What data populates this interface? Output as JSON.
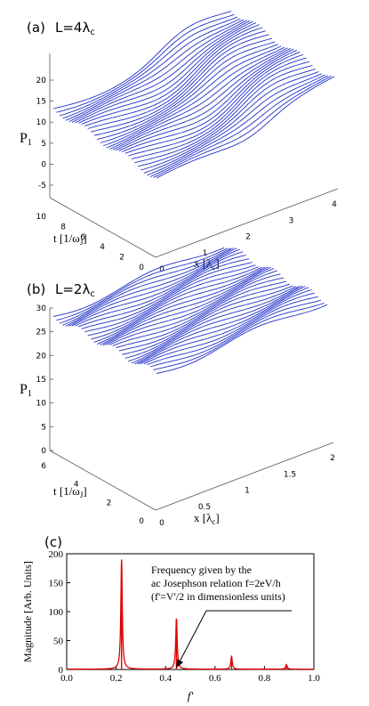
{
  "panels": [
    {
      "label": "(a)",
      "title_main": "L=4λ",
      "title_sub": "c",
      "type": "surface3d",
      "zlabel_main": "P",
      "zlabel_sub": "1",
      "tlabel_main": "t [1/ω",
      "tlabel_sub": "J",
      "tlabel_end": "]",
      "xlabel_main": "x [λ",
      "xlabel_sub": "c",
      "xlabel_end": "]",
      "z_ticks": [
        "20",
        "15",
        "10",
        "5",
        "0",
        "-5"
      ],
      "t_ticks": [
        "10",
        "8",
        "6",
        "4",
        "2",
        "0"
      ],
      "x_ticks": [
        "0",
        "1",
        "2",
        "3",
        "4"
      ],
      "line_color": "#1f2fc8"
    },
    {
      "label": "(b)",
      "title_main": "L=2λ",
      "title_sub": "c",
      "type": "surface3d",
      "zlabel_main": "P",
      "zlabel_sub": "1",
      "tlabel_main": "t [1/ω",
      "tlabel_sub": "J",
      "tlabel_end": "]",
      "xlabel_main": "x [λ",
      "xlabel_sub": "c",
      "xlabel_end": "]",
      "z_ticks": [
        "30",
        "25",
        "20",
        "15",
        "10",
        "5",
        "0"
      ],
      "t_ticks": [
        "6",
        "4",
        "2",
        "0"
      ],
      "x_ticks": [
        "0",
        "0.5",
        "1",
        "1.5",
        "2"
      ],
      "line_color": "#1f2fc8"
    }
  ],
  "panel_c_label": "(c)",
  "annotation": {
    "line1": "Frequency given by the",
    "line2": "ac Josephson relation f=2eV/h",
    "line3": "(f'=V'/2  in dimensionless units)"
  },
  "chart_data": {
    "type": "line",
    "xlabel": "f'",
    "ylabel": "Magnitude [Arb. Units]",
    "xlim": [
      0.0,
      1.0
    ],
    "ylim": [
      0,
      200
    ],
    "x_ticks": [
      "0.0",
      "0.2",
      "0.4",
      "0.6",
      "0.8",
      "1.0"
    ],
    "y_ticks": [
      "0",
      "50",
      "100",
      "150",
      "200"
    ],
    "line_color": "#e00000",
    "peaks": [
      {
        "x": 0.222,
        "y": 190
      },
      {
        "x": 0.444,
        "y": 88
      },
      {
        "x": 0.667,
        "y": 22
      },
      {
        "x": 0.889,
        "y": 8
      }
    ],
    "annotation_arrow_target": {
      "x": 0.444,
      "y": 0
    }
  }
}
